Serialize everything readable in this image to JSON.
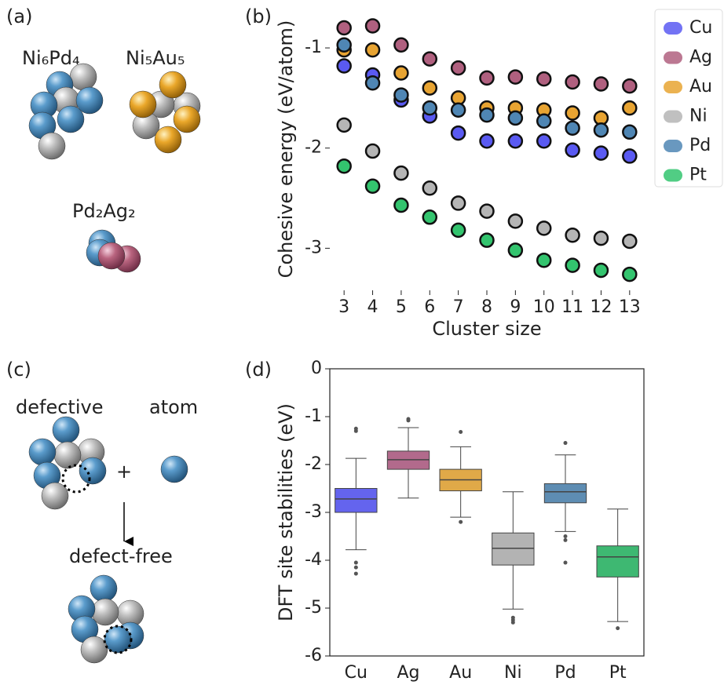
{
  "panels": {
    "a": {
      "label": "(a)",
      "clusters": [
        "Ni₆Pd₄",
        "Ni₅Au₅",
        "Pd₂Ag₂"
      ]
    },
    "c": {
      "label": "(c)",
      "left": "defective",
      "right": "atom",
      "plus": "+",
      "result": "defect-free"
    }
  },
  "chart_data": [
    {
      "type": "scatter",
      "panel_label": "(b)",
      "xlabel": "Cluster size",
      "ylabel": "Cohesive energy (eV/atom)",
      "x": [
        3,
        4,
        5,
        6,
        7,
        8,
        9,
        10,
        11,
        12,
        13
      ],
      "xlim": [
        2.5,
        13.5
      ],
      "xticks": [
        3,
        4,
        5,
        6,
        7,
        8,
        9,
        10,
        11,
        12,
        13
      ],
      "ylim": [
        -3.42,
        -0.6
      ],
      "yticks": [
        -1,
        -2,
        -3
      ],
      "legend": "outside-right",
      "series": [
        {
          "name": "Cu",
          "color": "#5a5af2",
          "values": [
            -1.18,
            -1.27,
            -1.52,
            -1.68,
            -1.85,
            -1.93,
            -1.93,
            -1.93,
            -2.02,
            -2.05,
            -2.08
          ]
        },
        {
          "name": "Ag",
          "color": "#b0607f",
          "values": [
            -0.8,
            -0.78,
            -0.97,
            -1.11,
            -1.2,
            -1.3,
            -1.29,
            -1.31,
            -1.34,
            -1.36,
            -1.38
          ]
        },
        {
          "name": "Au",
          "color": "#e8a432",
          "values": [
            -1.02,
            -1.02,
            -1.25,
            -1.4,
            -1.5,
            -1.6,
            -1.6,
            -1.62,
            -1.65,
            -1.7,
            -1.6
          ]
        },
        {
          "name": "Ni",
          "color": "#b5b5b5",
          "values": [
            -1.77,
            -2.03,
            -2.25,
            -2.4,
            -2.55,
            -2.63,
            -2.73,
            -2.8,
            -2.87,
            -2.9,
            -2.93
          ]
        },
        {
          "name": "Pd",
          "color": "#4f86b4",
          "values": [
            -0.97,
            -1.35,
            -1.47,
            -1.6,
            -1.62,
            -1.67,
            -1.7,
            -1.73,
            -1.8,
            -1.82,
            -1.84
          ]
        },
        {
          "name": "Pt",
          "color": "#33c46e",
          "values": [
            -2.18,
            -2.38,
            -2.57,
            -2.69,
            -2.82,
            -2.92,
            -3.02,
            -3.12,
            -3.17,
            -3.22,
            -3.26
          ]
        }
      ]
    },
    {
      "type": "box",
      "panel_label": "(d)",
      "ylabel": "DFT site stabilities (eV)",
      "categories": [
        "Cu",
        "Ag",
        "Au",
        "Ni",
        "Pd",
        "Pt"
      ],
      "colors": [
        "#6464ee",
        "#b26a8c",
        "#e0a948",
        "#b3b3b3",
        "#5e8db3",
        "#3eb872"
      ],
      "ylim": [
        -6,
        0
      ],
      "yticks": [
        0,
        -1,
        -2,
        -3,
        -4,
        -5,
        -6
      ],
      "boxes": [
        {
          "whislo": -3.78,
          "q1": -3.0,
          "median": -2.72,
          "q3": -2.5,
          "whishi": -1.87,
          "fliers": [
            -1.25,
            -1.3,
            -4.05,
            -4.15,
            -4.28
          ]
        },
        {
          "whislo": -2.7,
          "q1": -2.1,
          "median": -1.9,
          "q3": -1.72,
          "whishi": -1.23,
          "fliers": [
            -1.05,
            -1.08
          ]
        },
        {
          "whislo": -3.1,
          "q1": -2.55,
          "median": -2.32,
          "q3": -2.1,
          "whishi": -1.63,
          "fliers": [
            -1.32,
            -3.2
          ]
        },
        {
          "whislo": -5.02,
          "q1": -4.1,
          "median": -3.75,
          "q3": -3.43,
          "whishi": -2.57,
          "fliers": [
            -5.2,
            -5.25,
            -5.3
          ]
        },
        {
          "whislo": -3.4,
          "q1": -2.8,
          "median": -2.57,
          "q3": -2.4,
          "whishi": -1.8,
          "fliers": [
            -1.55,
            -3.5,
            -3.58,
            -4.05
          ]
        },
        {
          "whislo": -5.28,
          "q1": -4.35,
          "median": -3.93,
          "q3": -3.7,
          "whishi": -2.93,
          "fliers": [
            -5.42
          ]
        }
      ]
    }
  ]
}
